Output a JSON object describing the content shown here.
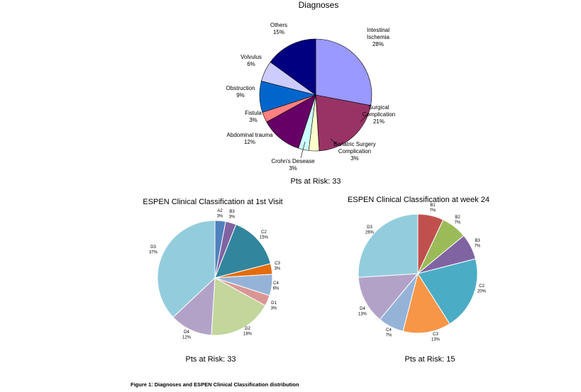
{
  "figure": {
    "caption": "Figure 1: Diagnoses and ESPEN Clinical Classification distribution"
  },
  "chart_data": [
    {
      "type": "pie",
      "title": "Diagnoses",
      "footer": "Pts at Risk: 33",
      "slices": [
        {
          "label": "Intestinal Ischemia",
          "value": 28,
          "pct": "28%",
          "color": "#9999ff"
        },
        {
          "label": "Surgical Complication",
          "value": 21,
          "pct": "21%",
          "color": "#993366"
        },
        {
          "label": "Bariatric Surgery Complication",
          "value": 3,
          "pct": "3%",
          "color": "#ffffcc"
        },
        {
          "label": "Crohn's Desease",
          "value": 3,
          "pct": "3%",
          "color": "#ccffff"
        },
        {
          "label": "Abdominal trauma",
          "value": 12,
          "pct": "12%",
          "color": "#660066"
        },
        {
          "label": "Fistula",
          "value": 3,
          "pct": "3%",
          "color": "#ff8080"
        },
        {
          "label": "Obstruction",
          "value": 9,
          "pct": "9%",
          "color": "#0066cc"
        },
        {
          "label": "Volvulus",
          "value": 6,
          "pct": "6%",
          "color": "#ccccff"
        },
        {
          "label": "Others",
          "value": 15,
          "pct": "15%",
          "color": "#000080"
        }
      ]
    },
    {
      "type": "pie",
      "title": "ESPEN Clinical Classification at 1st Visit",
      "footer": "Pts at Risk: 33",
      "slices": [
        {
          "label": "A2",
          "value": 3,
          "pct": "3%",
          "color": "#4f81bd"
        },
        {
          "label": "B3",
          "value": 3,
          "pct": "3%",
          "color": "#8064a2"
        },
        {
          "label": "C2",
          "value": 15,
          "pct": "15%",
          "color": "#31859c"
        },
        {
          "label": "C3",
          "value": 3,
          "pct": "3%",
          "color": "#e46c0a"
        },
        {
          "label": "C4",
          "value": 6,
          "pct": "6%",
          "color": "#95b3d7"
        },
        {
          "label": "D1",
          "value": 3,
          "pct": "3%",
          "color": "#d99694"
        },
        {
          "label": "D2",
          "value": 18,
          "pct": "18%",
          "color": "#c3d69b"
        },
        {
          "label": "D4",
          "value": 12,
          "pct": "12%",
          "color": "#b3a2c7"
        },
        {
          "label": "D3",
          "value": 37,
          "pct": "37%",
          "color": "#93cddd"
        }
      ]
    },
    {
      "type": "pie",
      "title": "ESPEN Clinical Classification at week 24",
      "footer": "Pts at Risk: 15",
      "slices": [
        {
          "label": "B1",
          "value": 7,
          "pct": "7%",
          "color": "#c0504d"
        },
        {
          "label": "B2",
          "value": 7,
          "pct": "7%",
          "color": "#9bbb59"
        },
        {
          "label": "B3",
          "value": 7,
          "pct": "7%",
          "color": "#8064a2"
        },
        {
          "label": "C2",
          "value": 20,
          "pct": "20%",
          "color": "#4bacc6"
        },
        {
          "label": "C3",
          "value": 13,
          "pct": "13%",
          "color": "#f79646"
        },
        {
          "label": "C4",
          "value": 7,
          "pct": "7%",
          "color": "#95b3d7"
        },
        {
          "label": "D4",
          "value": 13,
          "pct": "13%",
          "color": "#b3a2c7"
        },
        {
          "label": "D3",
          "value": 26,
          "pct": "26%",
          "color": "#93cddd"
        }
      ]
    }
  ]
}
